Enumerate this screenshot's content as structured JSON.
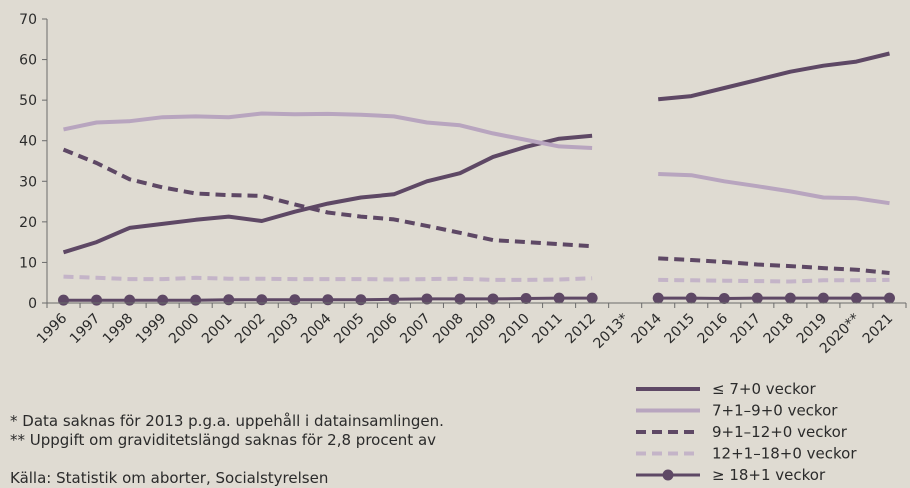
{
  "chart_data": {
    "type": "line",
    "categories": [
      "1996",
      "1997",
      "1998",
      "1999",
      "2000",
      "2001",
      "2002",
      "2003",
      "2004",
      "2005",
      "2006",
      "2007",
      "2008",
      "2009",
      "2010",
      "2011",
      "2012",
      "2013*",
      "2014",
      "2015",
      "2016",
      "2017",
      "2018",
      "2019",
      "2020**",
      "2021"
    ],
    "ylim": [
      0,
      70
    ],
    "yticks": [
      0,
      10,
      20,
      30,
      40,
      50,
      60,
      70
    ],
    "grid": false,
    "legend_position": "bottom-right",
    "series": [
      {
        "name": "≤ 7+0 veckor",
        "color": "#5e4865",
        "style": "solid",
        "width": 4,
        "marker": false,
        "values": [
          12.5,
          15,
          18.5,
          19.5,
          20.5,
          21.3,
          20.2,
          22.5,
          24.5,
          26,
          26.8,
          30,
          32,
          36,
          38.5,
          40.5,
          41.2,
          null,
          50.2,
          51,
          53,
          55,
          57,
          58.5,
          59.5,
          61.5
        ]
      },
      {
        "name": "7+1–9+0 veckor",
        "color": "#b8a5bf",
        "style": "solid",
        "width": 4,
        "marker": false,
        "values": [
          42.8,
          44.5,
          44.8,
          45.8,
          46,
          45.8,
          46.7,
          46.5,
          46.6,
          46.4,
          46,
          44.5,
          43.8,
          41.8,
          40.2,
          38.6,
          38.2,
          null,
          31.8,
          31.5,
          30,
          28.8,
          27.5,
          26,
          25.8,
          24.6
        ]
      },
      {
        "name": "9+1–12+0 veckor",
        "color": "#5e4865",
        "style": "dashed",
        "width": 4,
        "marker": false,
        "values": [
          37.8,
          34.5,
          30.5,
          28.5,
          27,
          26.6,
          26.4,
          24.3,
          22.3,
          21.3,
          20.6,
          19,
          17.3,
          15.5,
          15,
          14.5,
          14,
          null,
          11,
          10.6,
          10.1,
          9.5,
          9.1,
          8.6,
          8.2,
          7.4
        ]
      },
      {
        "name": "12+1–18+0 veckor",
        "color": "#c4b4c8",
        "style": "dashed",
        "width": 4,
        "marker": false,
        "values": [
          6.5,
          6.2,
          5.9,
          5.9,
          6.2,
          6,
          6,
          5.9,
          5.9,
          5.9,
          5.8,
          5.9,
          6,
          5.7,
          5.7,
          5.8,
          6.1,
          null,
          5.7,
          5.6,
          5.5,
          5.4,
          5.3,
          5.6,
          5.6,
          5.7
        ]
      },
      {
        "name": "≥ 18+1 veckor",
        "color": "#5e4865",
        "style": "solid",
        "width": 3,
        "marker": true,
        "values": [
          0.7,
          0.7,
          0.7,
          0.7,
          0.7,
          0.8,
          0.8,
          0.8,
          0.8,
          0.8,
          0.9,
          1,
          1,
          1,
          1.1,
          1.2,
          1.2,
          null,
          1.2,
          1.2,
          1.1,
          1.2,
          1.2,
          1.2,
          1.2,
          1.2
        ]
      }
    ]
  },
  "notes": {
    "line1": "* Data saknas för 2013 p.g.a. uppehåll i datainsamlingen.",
    "line2": "** Uppgift om graviditetslängd saknas för 2,8 procent av",
    "source": "Källa: Statistik om aborter, Socialstyrelsen"
  }
}
